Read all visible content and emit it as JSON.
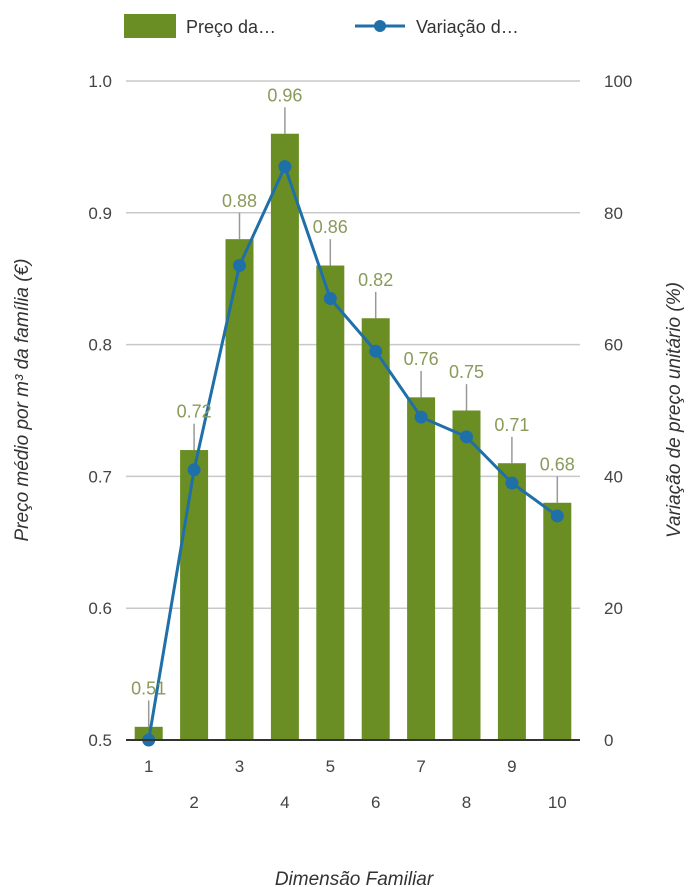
{
  "chart_data": {
    "type": "bar",
    "categories": [
      "1",
      "2",
      "3",
      "4",
      "5",
      "6",
      "7",
      "8",
      "9",
      "10"
    ],
    "series": [
      {
        "name": "Preço da…",
        "type": "bar",
        "axis": "left",
        "values": [
          0.51,
          0.72,
          0.88,
          0.96,
          0.86,
          0.82,
          0.76,
          0.75,
          0.71,
          0.68
        ],
        "data_labels": [
          "0.51",
          "0.72",
          "0.88",
          "0.96",
          "0.86",
          "0.82",
          "0.76",
          "0.75",
          "0.71",
          "0.68"
        ],
        "color": "#6a8e23"
      },
      {
        "name": "Variação d…",
        "type": "line",
        "axis": "right",
        "values": [
          0,
          41,
          72,
          87,
          67,
          59,
          49,
          46,
          39,
          34
        ],
        "color": "#1f6fa8"
      }
    ],
    "error_bar_top": [
      0.53,
      0.74,
      0.9,
      0.98,
      0.88,
      0.84,
      0.78,
      0.77,
      0.73,
      0.7
    ],
    "y_left": {
      "label": "Preço médio por m³ da família (€)",
      "range": [
        0.5,
        1.0
      ],
      "ticks": [
        "0.5",
        "0.6",
        "0.7",
        "0.8",
        "0.9",
        "1.0"
      ]
    },
    "y_right": {
      "label": "Variação de preço unitário (%)",
      "range": [
        0,
        100
      ],
      "ticks": [
        "0",
        "20",
        "40",
        "60",
        "80",
        "100"
      ]
    },
    "xlabel": "Dimensão Familiar",
    "grid": true,
    "legend_position": "top",
    "label_color": "#8a9a5b",
    "grid_color": "#c8c8c8",
    "axis_color": "#333333"
  }
}
